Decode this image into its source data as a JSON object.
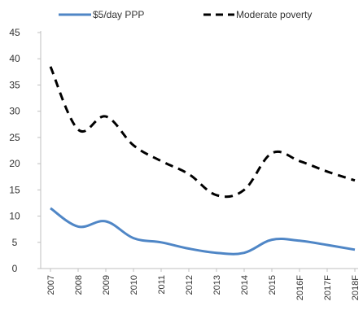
{
  "chart_data": {
    "type": "line",
    "title": "",
    "xlabel": "",
    "ylabel": "",
    "categories": [
      "2007",
      "2008",
      "2009",
      "2010",
      "2011",
      "2012",
      "2013",
      "2014",
      "2015",
      "2016F",
      "2017F",
      "2018F"
    ],
    "ylim": [
      0,
      45
    ],
    "yticks": [
      0,
      5,
      10,
      15,
      20,
      25,
      30,
      35,
      40,
      45
    ],
    "grid": false,
    "legend_position": "top",
    "series": [
      {
        "name": "$5/day PPP",
        "color": "#4f86c6",
        "style": "solid",
        "values": [
          11.5,
          8.0,
          9.0,
          5.8,
          5.0,
          3.8,
          3.0,
          3.0,
          5.5,
          5.3,
          4.5,
          3.6
        ]
      },
      {
        "name": "Moderate poverty",
        "color": "#000000",
        "style": "dashed",
        "values": [
          38.5,
          26.5,
          29.0,
          23.5,
          20.5,
          18.0,
          14.0,
          15.0,
          22.0,
          20.5,
          18.5,
          16.8
        ]
      }
    ]
  }
}
